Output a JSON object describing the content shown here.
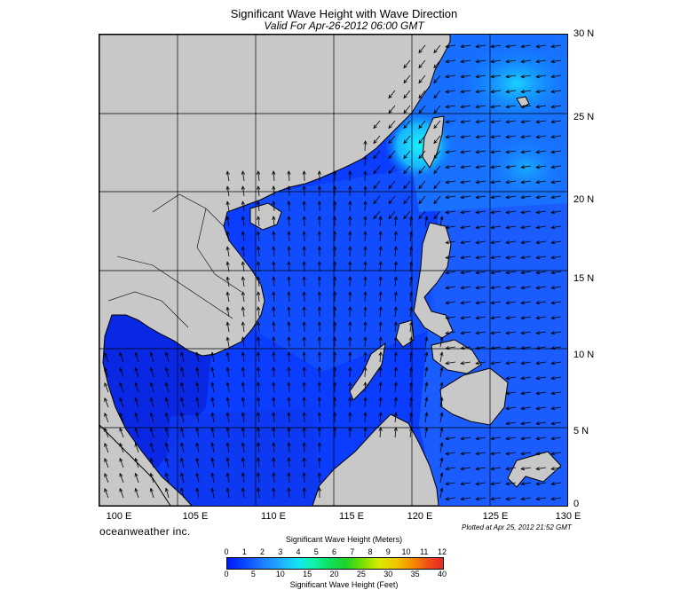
{
  "header": {
    "title": "Significant Wave Height with Wave Direction",
    "subtitle": "Valid For Apr-26-2012 06:00 GMT"
  },
  "map": {
    "lon_range": [
      100,
      130
    ],
    "lat_range": [
      0,
      30
    ],
    "land_color": "#c8c8c8",
    "sea_color": "#0a3dff",
    "lon_labels": [
      "100 E",
      "105 E",
      "110 E",
      "115 E",
      "120 E",
      "125 E",
      "130 E"
    ],
    "lat_labels": [
      "30 N",
      "25 N",
      "20 N",
      "15 N",
      "10 N",
      "5 N",
      "0"
    ]
  },
  "footer": {
    "brand": "oceanweather inc.",
    "plotted": "Plotted at Apr 25, 2012 21:52 GMT"
  },
  "colorbar": {
    "title_top": "Significant Wave Height (Meters)",
    "title_bottom": "Significant Wave Height (Feet)",
    "meters_ticks": [
      "0",
      "1",
      "2",
      "3",
      "4",
      "5",
      "6",
      "7",
      "8",
      "9",
      "10",
      "11",
      "12"
    ],
    "feet_ticks": [
      "0",
      "5",
      "10",
      "15",
      "20",
      "25",
      "30",
      "35",
      "40"
    ]
  }
}
